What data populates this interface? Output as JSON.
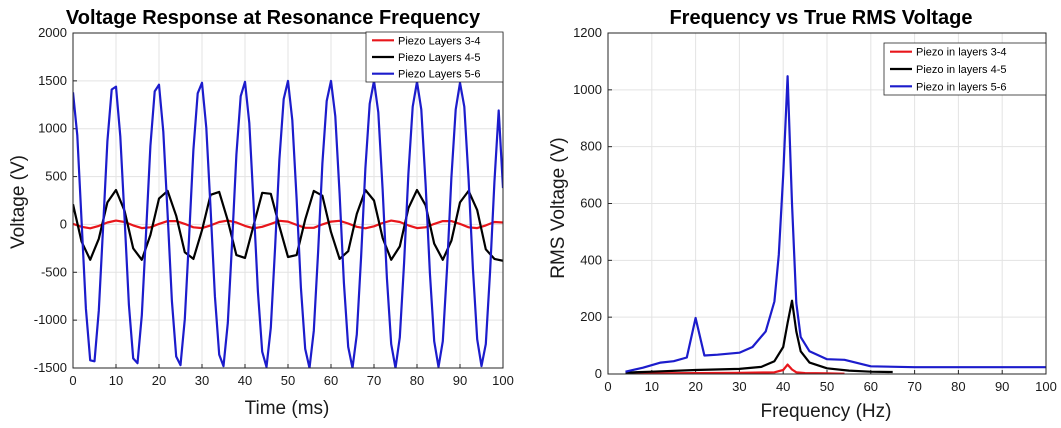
{
  "chart_data": [
    {
      "type": "line",
      "title": "Voltage Response at Resonance Frequency",
      "xlabel": "Time (ms)",
      "ylabel": "Voltage (V)",
      "xlim": [
        0,
        100
      ],
      "ylim": [
        -1500,
        2000
      ],
      "xticks": [
        "0",
        "10",
        "20",
        "30",
        "40",
        "50",
        "60",
        "70",
        "80",
        "90",
        "100"
      ],
      "yticks": [
        "-1500",
        "-1000",
        "-500",
        "0",
        "500",
        "1000",
        "1500",
        "2000"
      ],
      "grid": true,
      "legend_position": "top-right",
      "series": [
        {
          "name": "Piezo Layers 3-4",
          "color": "#e8161b",
          "x": [
            0,
            2,
            4,
            6,
            8,
            10,
            12,
            14,
            16,
            18,
            20,
            22,
            24,
            26,
            28,
            30,
            32,
            34,
            36,
            38,
            40,
            42,
            44,
            46,
            48,
            50,
            52,
            54,
            56,
            58,
            60,
            62,
            64,
            66,
            68,
            70,
            72,
            74,
            76,
            78,
            80,
            82,
            84,
            86,
            88,
            90,
            92,
            94,
            96,
            98,
            100
          ],
          "y": [
            5,
            -25,
            -40,
            -15,
            20,
            40,
            25,
            -10,
            -38,
            -30,
            5,
            35,
            35,
            5,
            -30,
            -38,
            -10,
            25,
            40,
            20,
            -15,
            -40,
            -25,
            5,
            38,
            30,
            -5,
            -35,
            -35,
            0,
            30,
            38,
            10,
            -25,
            -40,
            -20,
            15,
            40,
            25,
            -10,
            -38,
            -30,
            5,
            35,
            35,
            5,
            -30,
            -38,
            -10,
            25,
            20
          ]
        },
        {
          "name": "Piezo Layers 4-5",
          "color": "#000000",
          "x": [
            0,
            2,
            4,
            6,
            8,
            10,
            12,
            14,
            16,
            18,
            20,
            22,
            24,
            26,
            28,
            30,
            32,
            34,
            36,
            38,
            40,
            42,
            44,
            46,
            48,
            50,
            52,
            54,
            56,
            58,
            60,
            62,
            64,
            66,
            68,
            70,
            72,
            74,
            76,
            78,
            80,
            82,
            84,
            86,
            88,
            90,
            92,
            94,
            96,
            98,
            100
          ],
          "y": [
            210,
            -180,
            -370,
            -150,
            230,
            360,
            140,
            -250,
            -370,
            -110,
            270,
            350,
            90,
            -290,
            -360,
            -60,
            310,
            340,
            40,
            -320,
            -350,
            -10,
            330,
            320,
            -20,
            -340,
            -320,
            50,
            350,
            300,
            -80,
            -360,
            -280,
            110,
            360,
            250,
            -140,
            -370,
            -230,
            170,
            360,
            200,
            -200,
            -370,
            -170,
            230,
            350,
            150,
            -260,
            -360,
            -380
          ]
        },
        {
          "name": "Piezo Layers 5-6",
          "color": "#1c1ccc",
          "x": [
            0,
            1,
            2,
            3,
            4,
            5,
            6,
            7,
            8,
            9,
            10,
            11,
            12,
            13,
            14,
            15,
            16,
            17,
            18,
            19,
            20,
            21,
            22,
            23,
            24,
            25,
            26,
            27,
            28,
            29,
            30,
            31,
            32,
            33,
            34,
            35,
            36,
            37,
            38,
            39,
            40,
            41,
            42,
            43,
            44,
            45,
            46,
            47,
            48,
            49,
            50,
            51,
            52,
            53,
            54,
            55,
            56,
            57,
            58,
            59,
            60,
            61,
            62,
            63,
            64,
            65,
            66,
            67,
            68,
            69,
            70,
            71,
            72,
            73,
            74,
            75,
            76,
            77,
            78,
            79,
            80,
            81,
            82,
            83,
            84,
            85,
            86,
            87,
            88,
            89,
            90,
            91,
            92,
            93,
            94,
            95,
            96,
            97,
            98,
            99,
            100
          ],
          "y": [
            1380,
            930,
            30,
            -880,
            -1420,
            -1430,
            -900,
            -30,
            870,
            1410,
            1440,
            920,
            60,
            -840,
            -1400,
            -1450,
            -950,
            -80,
            820,
            1390,
            1460,
            970,
            110,
            -800,
            -1380,
            -1470,
            -990,
            -130,
            780,
            1370,
            1480,
            1010,
            160,
            -750,
            -1360,
            -1480,
            -1030,
            -190,
            730,
            1340,
            1490,
            1060,
            210,
            -700,
            -1330,
            -1490,
            -1080,
            -240,
            680,
            1310,
            1500,
            1090,
            270,
            -660,
            -1300,
            -1500,
            -1110,
            -290,
            640,
            1290,
            1500,
            1130,
            320,
            -610,
            -1280,
            -1500,
            -1150,
            -340,
            590,
            1260,
            1500,
            1170,
            370,
            -560,
            -1250,
            -1500,
            -1180,
            -400,
            530,
            1230,
            1490,
            1200,
            420,
            -510,
            -1220,
            -1490,
            -1220,
            -450,
            490,
            1200,
            1480,
            1230,
            470,
            -460,
            -1200,
            -1480,
            -1250,
            -490,
            440,
            1190,
            380
          ]
        }
      ]
    },
    {
      "type": "line",
      "title": "Frequency vs True RMS Voltage",
      "xlabel": "Frequency (Hz)",
      "ylabel": "RMS Voltage (V)",
      "xlim": [
        0,
        100
      ],
      "ylim": [
        0,
        1200
      ],
      "xticks": [
        "0",
        "10",
        "20",
        "30",
        "40",
        "50",
        "60",
        "70",
        "80",
        "90",
        "100"
      ],
      "yticks": [
        "0",
        "200",
        "400",
        "600",
        "800",
        "1000",
        "1200"
      ],
      "grid": true,
      "legend_position": "top-right",
      "series": [
        {
          "name": "Piezo in layers 3-4",
          "color": "#e8161b",
          "x": [
            4,
            10,
            20,
            30,
            38,
            40,
            41,
            42,
            43,
            45,
            50,
            54
          ],
          "y": [
            1,
            2,
            3,
            4,
            6,
            14,
            33,
            16,
            6,
            3,
            2,
            1
          ]
        },
        {
          "name": "Piezo in layers 4-5",
          "color": "#000000",
          "x": [
            4,
            10,
            20,
            30,
            35,
            38,
            40,
            41,
            42,
            43,
            44,
            46,
            50,
            55,
            60,
            65
          ],
          "y": [
            5,
            8,
            14,
            18,
            25,
            45,
            95,
            180,
            258,
            150,
            80,
            40,
            20,
            12,
            8,
            7
          ]
        },
        {
          "name": "Piezo in layers 5-6",
          "color": "#1c1ccc",
          "x": [
            4,
            8,
            12,
            15,
            18,
            20,
            22,
            25,
            30,
            33,
            36,
            38,
            39,
            40,
            41,
            42,
            43,
            44,
            46,
            50,
            54,
            60,
            70,
            80,
            90,
            100
          ],
          "y": [
            8,
            22,
            40,
            45,
            58,
            197,
            65,
            68,
            75,
            95,
            150,
            255,
            420,
            700,
            1048,
            600,
            250,
            130,
            80,
            52,
            50,
            27,
            24,
            24,
            24,
            24
          ]
        }
      ]
    }
  ]
}
